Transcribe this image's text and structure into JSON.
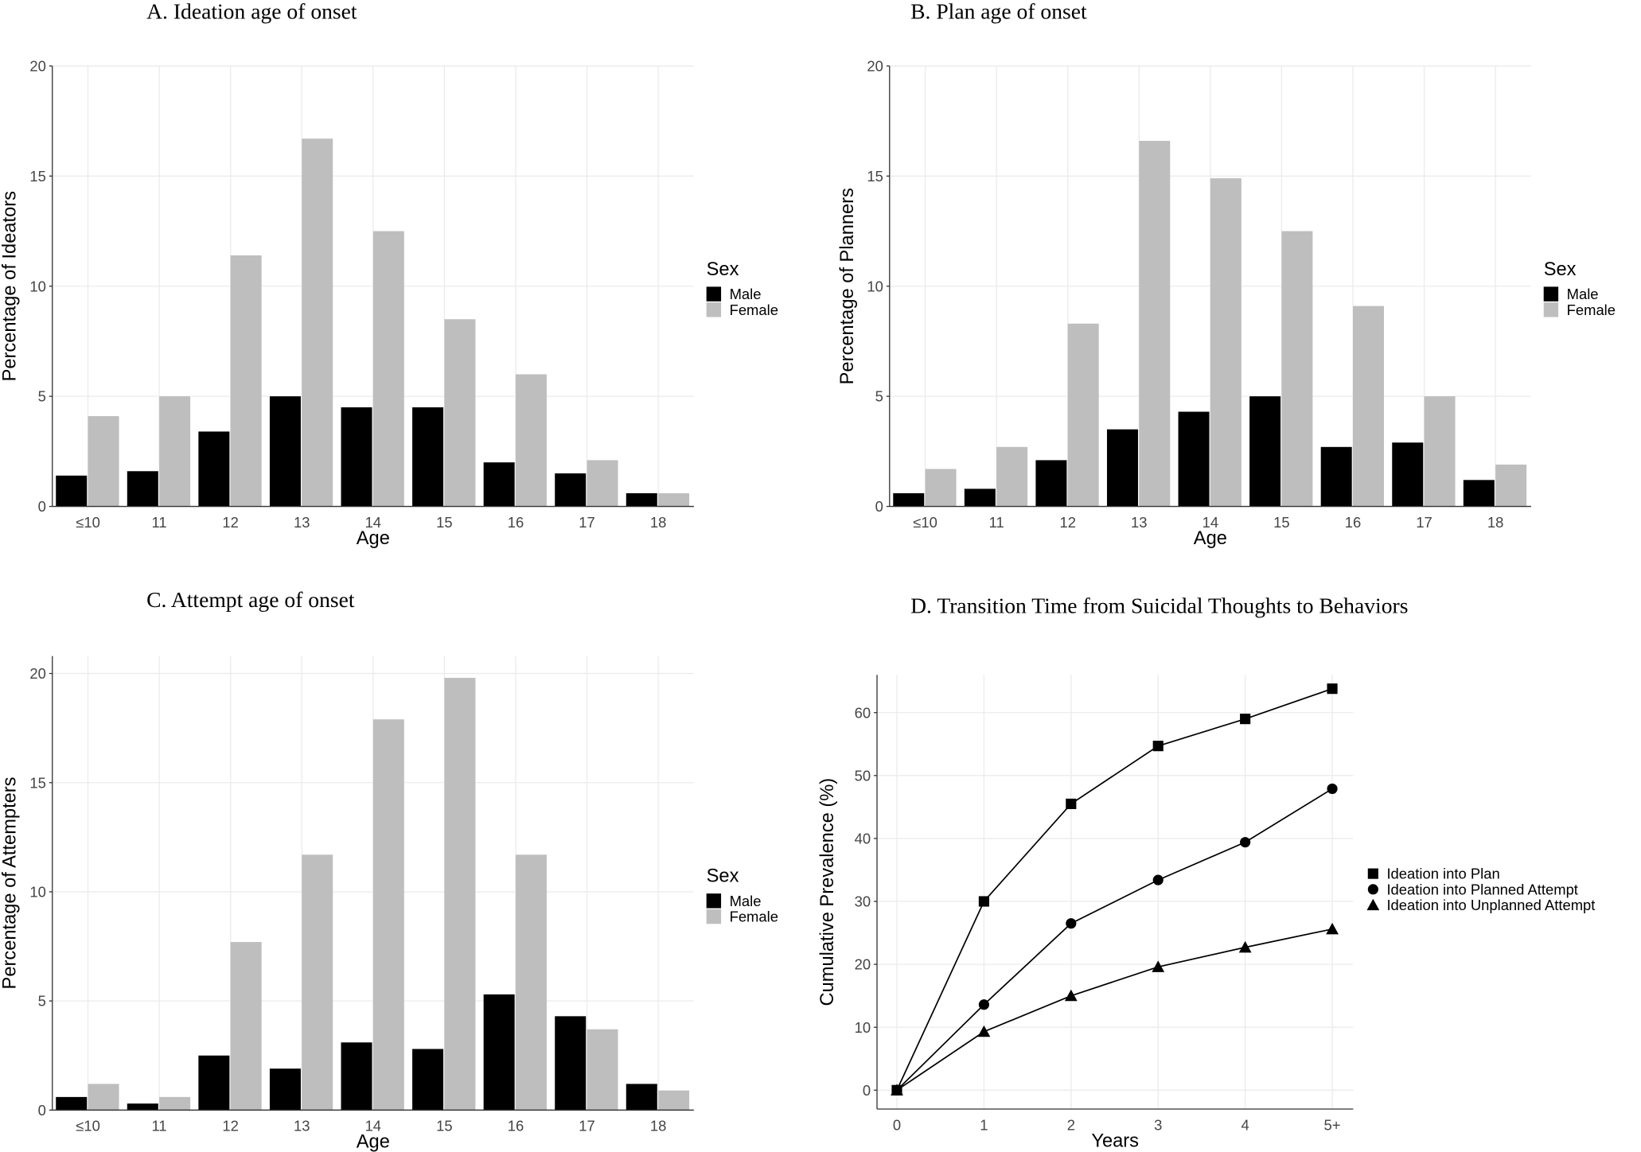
{
  "chart_data": [
    {
      "type": "bar",
      "title": "A. Ideation age of onset",
      "xlabel": "Age",
      "ylabel": "Percentage of Ideators",
      "ylim": [
        0,
        20
      ],
      "yticks": [
        "0",
        "5",
        "10",
        "15",
        "20"
      ],
      "categories": [
        "≤10",
        "11",
        "12",
        "13",
        "14",
        "15",
        "16",
        "17",
        "18"
      ],
      "legend_title": "Sex",
      "legend_placement": "right",
      "series": [
        {
          "name": "Male",
          "color": "#000000",
          "values": [
            1.4,
            1.6,
            3.4,
            5.0,
            4.5,
            4.5,
            2.0,
            1.5,
            0.6
          ]
        },
        {
          "name": "Female",
          "color": "#bebebe",
          "values": [
            4.1,
            5.0,
            11.4,
            16.7,
            12.5,
            8.5,
            6.0,
            2.1,
            0.6
          ]
        }
      ]
    },
    {
      "type": "bar",
      "title": "B. Plan age of onset",
      "xlabel": "Age",
      "ylabel": "Percentage of Planners",
      "ylim": [
        0,
        20
      ],
      "yticks": [
        "0",
        "5",
        "10",
        "15",
        "20"
      ],
      "categories": [
        "≤10",
        "11",
        "12",
        "13",
        "14",
        "15",
        "16",
        "17",
        "18"
      ],
      "legend_title": "Sex",
      "legend_placement": "right",
      "series": [
        {
          "name": "Male",
          "color": "#000000",
          "values": [
            0.6,
            0.8,
            2.1,
            3.5,
            4.3,
            5.0,
            2.7,
            2.9,
            1.2
          ]
        },
        {
          "name": "Female",
          "color": "#bebebe",
          "values": [
            1.7,
            2.7,
            8.3,
            16.6,
            14.9,
            12.5,
            9.1,
            5.0,
            1.9
          ]
        }
      ]
    },
    {
      "type": "bar",
      "title": "C. Attempt age of onset",
      "xlabel": "Age",
      "ylabel": "Percentage of Attempters",
      "ylim": [
        0,
        20.8
      ],
      "yticks": [
        "0",
        "5",
        "10",
        "15",
        "20"
      ],
      "categories": [
        "≤10",
        "11",
        "12",
        "13",
        "14",
        "15",
        "16",
        "17",
        "18"
      ],
      "legend_title": "Sex",
      "legend_placement": "right",
      "series": [
        {
          "name": "Male",
          "color": "#000000",
          "values": [
            0.6,
            0.3,
            2.5,
            1.9,
            3.1,
            2.8,
            5.3,
            4.3,
            1.2
          ]
        },
        {
          "name": "Female",
          "color": "#bebebe",
          "values": [
            1.2,
            0.6,
            7.7,
            11.7,
            17.9,
            19.8,
            11.7,
            3.7,
            0.9
          ]
        }
      ]
    },
    {
      "type": "line",
      "title": "D. Transition Time from Suicidal Thoughts to Behaviors",
      "xlabel": "Years",
      "ylabel": "Cumulative Prevalence (%)",
      "ylim": [
        -3,
        66
      ],
      "yticks": [
        "0",
        "10",
        "20",
        "30",
        "40",
        "50",
        "60"
      ],
      "categories": [
        "0",
        "1",
        "2",
        "3",
        "4",
        "5+"
      ],
      "legend_placement": "right",
      "series": [
        {
          "name": "Ideation into Plan",
          "marker": "square",
          "values": [
            0,
            30.0,
            45.5,
            54.7,
            59.0,
            63.8
          ]
        },
        {
          "name": "Ideation into Planned Attempt",
          "marker": "circle",
          "values": [
            0,
            13.6,
            26.5,
            33.4,
            39.4,
            47.9
          ]
        },
        {
          "name": "Ideation into Unplanned Attempt",
          "marker": "triangle",
          "values": [
            0,
            9.3,
            15.0,
            19.6,
            22.7,
            25.6
          ]
        }
      ]
    }
  ]
}
